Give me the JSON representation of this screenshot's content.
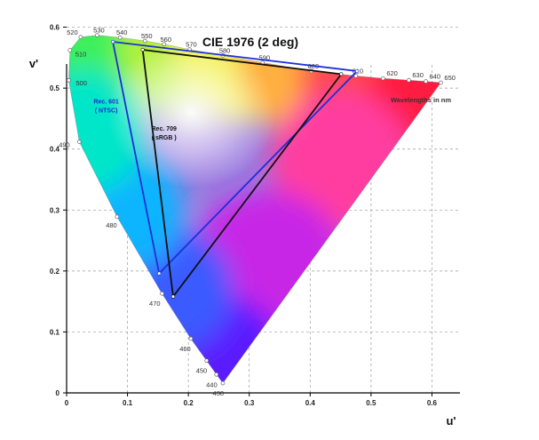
{
  "chart_data": {
    "type": "scatter",
    "title": "CIE 1976 (2 deg)",
    "xlabel": "u'",
    "ylabel": "v'",
    "xlim": [
      0,
      0.65
    ],
    "ylim": [
      0,
      0.65
    ],
    "x_ticks": [
      0,
      0.1,
      0.2,
      0.3,
      0.4,
      0.5,
      0.6
    ],
    "y_ticks": [
      0,
      0.1,
      0.2,
      0.3,
      0.4,
      0.5,
      0.6
    ],
    "x_tick_labels": [
      "0",
      "0.1",
      "0.2",
      "0.3",
      "0.4",
      "0.5",
      "0.6"
    ],
    "y_tick_labels": [
      "0",
      "0.1",
      "0.2",
      "0.3",
      "0.4",
      "0.5",
      "0.6"
    ],
    "grid": true,
    "wavelength_note": "Wavelengths in nm",
    "spectral_locus": [
      {
        "nm": "430",
        "u": 0.2566,
        "v": 0.016
      },
      {
        "nm": "440",
        "u": 0.2461,
        "v": 0.0302
      },
      {
        "nm": "450",
        "u": 0.23,
        "v": 0.053
      },
      {
        "nm": "460",
        "u": 0.204,
        "v": 0.089
      },
      {
        "nm": "470",
        "u": 0.1567,
        "v": 0.163
      },
      {
        "nm": "480",
        "u": 0.0828,
        "v": 0.289
      },
      {
        "nm": "490",
        "u": 0.0208,
        "v": 0.412
      },
      {
        "nm": "500",
        "u": 0.0035,
        "v": 0.513
      },
      {
        "nm": "510",
        "u": 0.0055,
        "v": 0.5621
      },
      {
        "nm": "520",
        "u": 0.0231,
        "v": 0.5837
      },
      {
        "nm": "530",
        "u": 0.0502,
        "v": 0.5868
      },
      {
        "nm": "540",
        "u": 0.0878,
        "v": 0.583
      },
      {
        "nm": "550",
        "u": 0.1287,
        "v": 0.5775
      },
      {
        "nm": "560",
        "u": 0.1601,
        "v": 0.572
      },
      {
        "nm": "570",
        "u": 0.2019,
        "v": 0.5635
      },
      {
        "nm": "580",
        "u": 0.2568,
        "v": 0.5535
      },
      {
        "nm": "590",
        "u": 0.322,
        "v": 0.542
      },
      {
        "nm": "600",
        "u": 0.4022,
        "v": 0.528
      },
      {
        "nm": "610",
        "u": 0.4752,
        "v": 0.52
      },
      {
        "nm": "620",
        "u": 0.5197,
        "v": 0.516
      },
      {
        "nm": "630",
        "u": 0.562,
        "v": 0.513
      },
      {
        "nm": "640",
        "u": 0.59,
        "v": 0.511
      },
      {
        "nm": "650",
        "u": 0.6146,
        "v": 0.509
      }
    ],
    "gamuts": [
      {
        "name": "Rec. 601",
        "label_lines": [
          "Rec. 601",
          "( NTSC)"
        ],
        "color": "#1e2fd6",
        "label_at": [
          0.065,
          0.475
        ],
        "points": [
          [
            0.477,
            0.528
          ],
          [
            0.076,
            0.576
          ],
          [
            0.152,
            0.196
          ]
        ]
      },
      {
        "name": "Rec. 709",
        "label_lines": [
          "Rec. 709",
          "( sRGB )"
        ],
        "color": "#111111",
        "label_at": [
          0.16,
          0.43
        ],
        "points": [
          [
            0.451,
            0.523
          ],
          [
            0.125,
            0.563
          ],
          [
            0.175,
            0.158
          ]
        ]
      }
    ],
    "colors": {
      "background": "#ffffff",
      "axis": "#000000",
      "grid": "#9a9a9a"
    }
  }
}
